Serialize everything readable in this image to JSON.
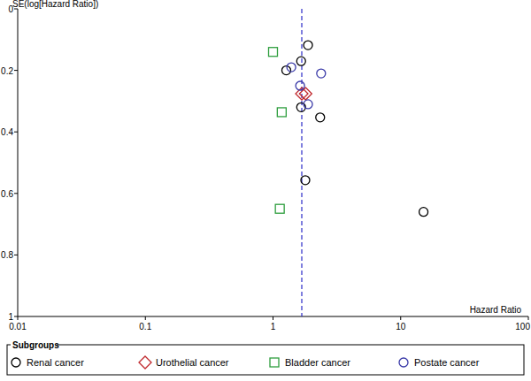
{
  "chart_data": {
    "type": "scatter",
    "log": "x",
    "x_label": "Hazard Ratio",
    "y_label": "SE(log[Hazard Ratio])",
    "xlim": [
      0.01,
      100
    ],
    "xticks": [
      0.01,
      0.1,
      1,
      10,
      100
    ],
    "ylim": [
      0,
      1
    ],
    "yticks": [
      0,
      0.2,
      0.4,
      0.6,
      0.8,
      1
    ],
    "summary_hr": 1.68,
    "legend": "bottom",
    "legend_title": "Subgroups",
    "series": [
      {
        "name": "Renal cancer",
        "color": "#000000",
        "marker": "circle",
        "x": [
          1.88,
          1.66,
          1.27,
          1.66,
          2.34,
          1.79,
          15.1
        ],
        "values": [
          0.118,
          0.17,
          0.2,
          0.32,
          0.353,
          0.557,
          0.66
        ]
      },
      {
        "name": "Urothelial cancer",
        "color": "#c0282d",
        "marker": "diamond",
        "x": [
          1.68,
          1.8
        ],
        "values": [
          0.276,
          0.276
        ]
      },
      {
        "name": "Bladder cancer",
        "color": "#2e9e3e",
        "marker": "square",
        "x": [
          1.0,
          1.17,
          1.13
        ],
        "values": [
          0.14,
          0.336,
          0.65
        ]
      },
      {
        "name": "Postate cancer",
        "color": "#3a3aa8",
        "marker": "circle",
        "x": [
          1.39,
          2.38,
          1.63,
          1.88
        ],
        "values": [
          0.19,
          0.21,
          0.25,
          0.31
        ]
      }
    ]
  }
}
